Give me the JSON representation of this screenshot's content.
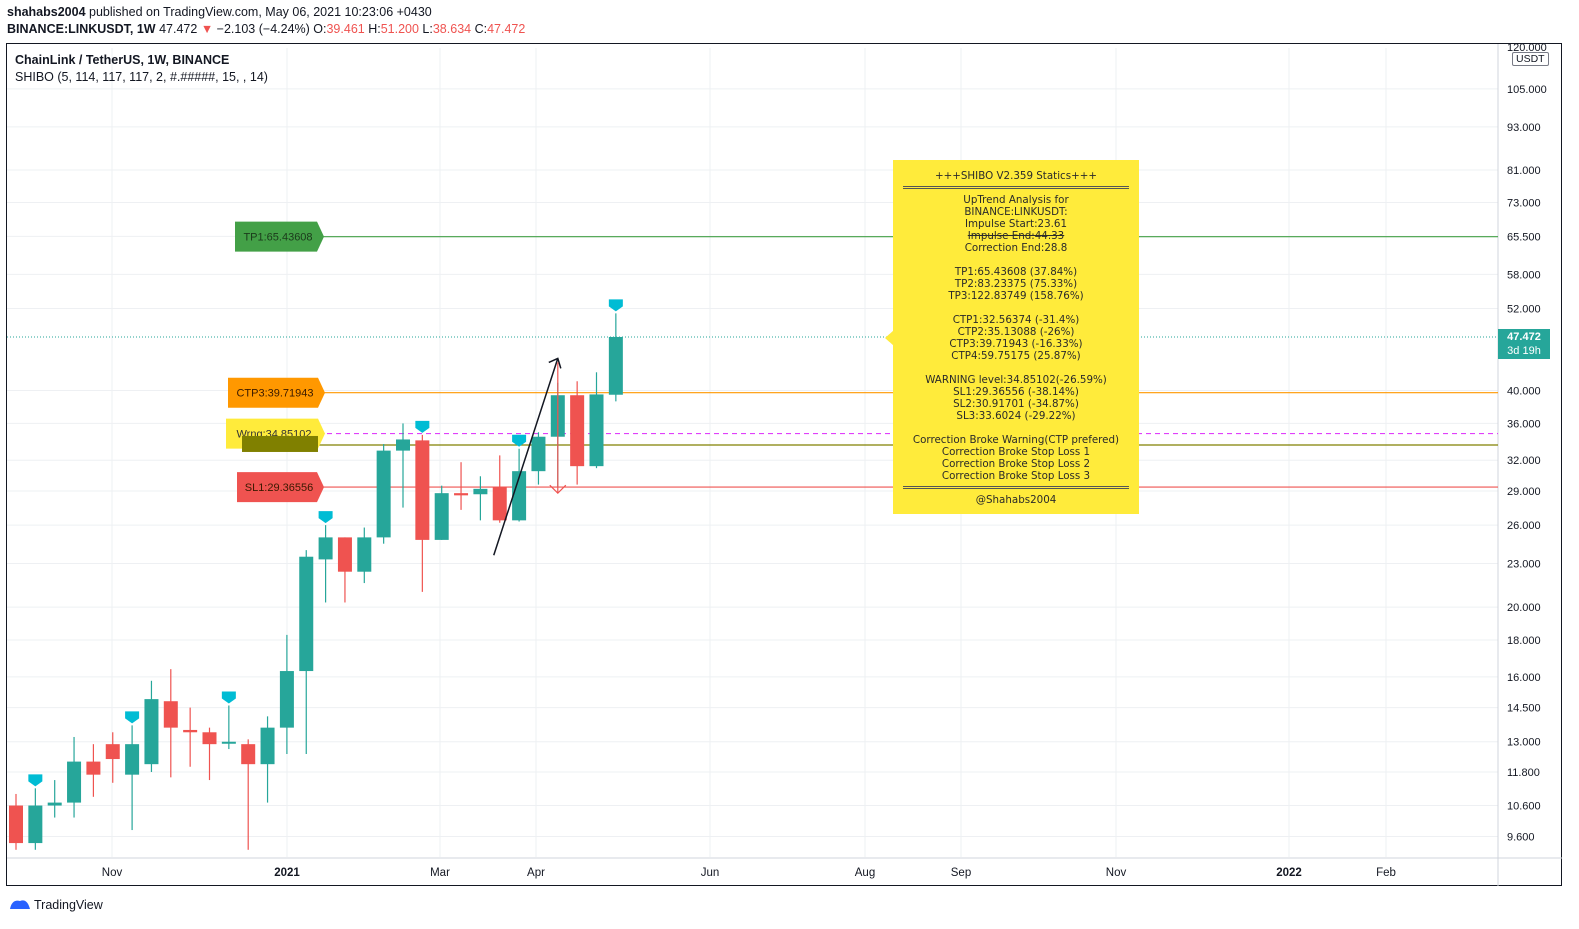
{
  "header": {
    "author": "shahabs2004",
    "published_text": "published on TradingView.com, May 06, 2021 10:23:06 +0430",
    "symbol": "BINANCE:LINKUSDT, 1W",
    "last": "47.472",
    "arrow": "▼",
    "change": "−2.103 (−4.24%)",
    "o_label": "O:",
    "o": "39.461",
    "h_label": "H:",
    "h": "51.200",
    "l_label": "L:",
    "l": "38.634",
    "c_label": "C:",
    "c": "47.472"
  },
  "legend": {
    "title": "ChainLink / TetherUS, 1W, BINANCE",
    "indicator": "SHIBO (5, 114, 117, 117, 2, #.#####, 15, , 14)"
  },
  "price_scale": {
    "currency": "USDT",
    "current_price": "47.472",
    "countdown": "3d 19h"
  },
  "footer": {
    "brand": "TradingView"
  },
  "stats_box": {
    "lines": [
      "+++SHIBO V2.359 Statics+++",
      "RULE",
      "UpTrend Analysis for",
      "BINANCE:LINKUSDT:",
      "Impulse Start:23.61",
      "STRIKE:Impulse End:44.33",
      "Correction End:28.8",
      "",
      "TP1:65.43608 (37.84%)",
      "TP2:83.23375 (75.33%)",
      "TP3:122.83749 (158.76%)",
      "",
      "CTP1:32.56374 (-31.4%)",
      "CTP2:35.13088 (-26%)",
      "CTP3:39.71943 (-16.33%)",
      "CTP4:59.75175 (25.87%)",
      "",
      "WARNING level:34.85102(-26.59%)",
      "SL1:29.36556 (-38.14%)",
      "SL2:30.91701 (-34.87%)",
      "SL3:33.6024 (-29.22%)",
      "",
      "Correction Broke Warning(CTP prefered)",
      "Correction Broke Stop Loss 1",
      "Correction Broke Stop Loss 2",
      "Correction Broke Stop Loss 3",
      "RULE",
      "@Shahabs2004"
    ]
  },
  "chart_data": {
    "type": "candlestick",
    "timeframe": "1W",
    "yscale": "log",
    "ylim": [
      9.2,
      120
    ],
    "y_ticks": [
      "120.000",
      "105.000",
      "93.000",
      "81.000",
      "73.000",
      "65.500",
      "58.000",
      "52.000",
      "40.000",
      "36.000",
      "32.000",
      "29.000",
      "26.000",
      "23.000",
      "20.000",
      "18.000",
      "16.000",
      "14.500",
      "13.000",
      "11.800",
      "10.600",
      "9.600"
    ],
    "x_ticks": [
      "Nov",
      "2021",
      "Mar",
      "Apr",
      "Jun",
      "Aug",
      "Sep",
      "Nov",
      "2022",
      "Feb"
    ],
    "candles": [
      {
        "o": 10.6,
        "h": 11.0,
        "l": 9.2,
        "c": 9.4
      },
      {
        "o": 9.4,
        "h": 11.2,
        "l": 9.2,
        "c": 10.6
      },
      {
        "o": 10.6,
        "h": 11.5,
        "l": 10.2,
        "c": 10.7
      },
      {
        "o": 10.7,
        "h": 13.2,
        "l": 10.2,
        "c": 12.2
      },
      {
        "o": 12.2,
        "h": 12.9,
        "l": 10.9,
        "c": 11.7
      },
      {
        "o": 12.9,
        "h": 13.4,
        "l": 11.4,
        "c": 12.3
      },
      {
        "o": 11.7,
        "h": 13.7,
        "l": 9.8,
        "c": 12.9
      },
      {
        "o": 12.1,
        "h": 15.8,
        "l": 11.8,
        "c": 14.9
      },
      {
        "o": 14.8,
        "h": 16.4,
        "l": 11.6,
        "c": 13.6
      },
      {
        "o": 13.5,
        "h": 14.5,
        "l": 12.0,
        "c": 13.4
      },
      {
        "o": 13.4,
        "h": 13.6,
        "l": 11.5,
        "c": 12.9
      },
      {
        "o": 13.0,
        "h": 14.6,
        "l": 12.7,
        "c": 13.0
      },
      {
        "o": 12.9,
        "h": 13.1,
        "l": 9.2,
        "c": 12.1
      },
      {
        "o": 12.1,
        "h": 14.1,
        "l": 10.7,
        "c": 13.6
      },
      {
        "o": 13.6,
        "h": 18.3,
        "l": 12.5,
        "c": 16.3
      },
      {
        "o": 16.3,
        "h": 24.0,
        "l": 12.5,
        "c": 23.5
      },
      {
        "o": 23.3,
        "h": 26.0,
        "l": 20.3,
        "c": 25.0
      },
      {
        "o": 25.0,
        "h": 25.0,
        "l": 20.3,
        "c": 22.4
      },
      {
        "o": 22.4,
        "h": 25.8,
        "l": 21.6,
        "c": 25.0
      },
      {
        "o": 25.0,
        "h": 33.7,
        "l": 24.5,
        "c": 33.0
      },
      {
        "o": 33.0,
        "h": 36.0,
        "l": 27.5,
        "c": 34.2
      },
      {
        "o": 34.1,
        "h": 34.7,
        "l": 21.0,
        "c": 24.8
      },
      {
        "o": 24.8,
        "h": 29.5,
        "l": 24.8,
        "c": 28.8
      },
      {
        "o": 28.8,
        "h": 31.8,
        "l": 27.3,
        "c": 28.6
      },
      {
        "o": 28.7,
        "h": 30.4,
        "l": 26.4,
        "c": 29.2
      },
      {
        "o": 29.4,
        "h": 32.5,
        "l": 26.2,
        "c": 26.4
      },
      {
        "o": 26.4,
        "h": 33.2,
        "l": 26.3,
        "c": 30.9
      },
      {
        "o": 30.9,
        "h": 35.0,
        "l": 29.6,
        "c": 34.5
      },
      {
        "o": 34.5,
        "h": 41.0,
        "l": 29.4,
        "c": 39.4
      },
      {
        "o": 39.4,
        "h": 41.2,
        "l": 29.6,
        "c": 31.4
      },
      {
        "o": 31.4,
        "h": 42.4,
        "l": 31.2,
        "c": 39.5
      },
      {
        "o": 39.461,
        "h": 51.2,
        "l": 38.634,
        "c": 47.472
      }
    ],
    "horizontal_lines": [
      {
        "name": "TP1",
        "value": 65.43608,
        "label": "TP1:65.43608",
        "color": "#43a047"
      },
      {
        "name": "CTP3",
        "value": 39.71943,
        "label": "CTP3:39.71943",
        "color": "#ff9800"
      },
      {
        "name": "Warning",
        "value": 34.85102,
        "label": "Wrng:34.85102",
        "color": "#ffeb3b",
        "line_color": "#e040fb"
      },
      {
        "name": "SL3",
        "value": 33.6024,
        "label": "",
        "color": "#808000"
      },
      {
        "name": "SL1",
        "value": 29.36556,
        "label": "SL1:29.36556",
        "color": "#ef5350"
      }
    ],
    "current_price_line": 47.472,
    "impulse": {
      "start": 23.61,
      "end": 44.33,
      "correction_end": 28.8
    }
  },
  "colors": {
    "up": "#26a69a",
    "down": "#ef5350",
    "grid": "#eef0f3",
    "stats_bg": "#ffeb3b"
  }
}
